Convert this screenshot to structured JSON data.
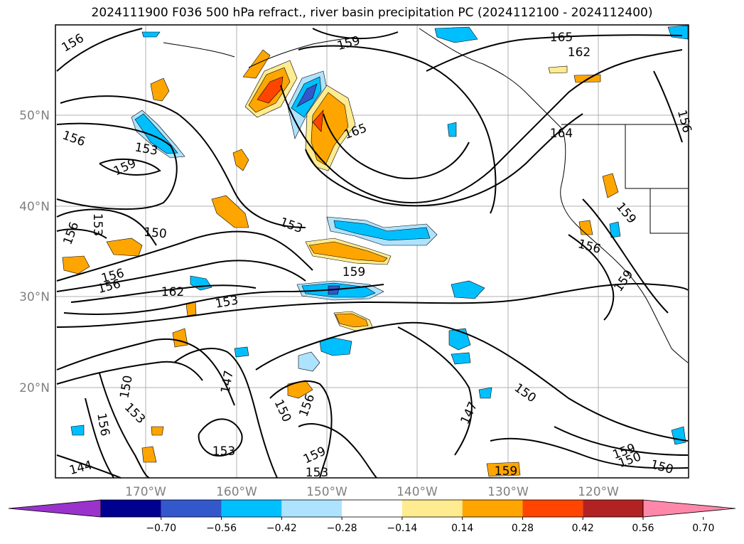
{
  "title": "2024111900 F036 500 hPa refract., river basin precipitation PC (2024112100 - 2024112400)",
  "lat_labels": [
    "50°N",
    "40°N",
    "30°N",
    "20°N"
  ],
  "lon_labels": [
    "170°W",
    "160°W",
    "150°W",
    "140°W",
    "130°W",
    "120°W"
  ],
  "contour_labels": [
    "156",
    "159",
    "165",
    "162",
    "156",
    "153",
    "159",
    "165",
    "156",
    "164",
    "156",
    "153",
    "150",
    "159",
    "156",
    "153",
    "159",
    "156",
    "156",
    "162",
    "153",
    "159",
    "150",
    "147",
    "150",
    "153",
    "156",
    "150",
    "156",
    "159",
    "147",
    "153",
    "144",
    "153",
    "159",
    "159",
    "150",
    "150",
    "156",
    "159"
  ],
  "colorbar": {
    "colors": [
      "#9933cc",
      "#000090",
      "#3358cc",
      "#00bfff",
      "#aee3ff",
      "#ffffff",
      "#ffeb90",
      "#ffa500",
      "#ff4500",
      "#b22222",
      "#ff88aa"
    ],
    "ticks": [
      "−0.70",
      "−0.56",
      "−0.42",
      "−0.28",
      "−0.14",
      "0.14",
      "0.28",
      "0.42",
      "0.56",
      "0.70"
    ]
  },
  "colors": {
    "contour": "#000000",
    "gridline": "#b0b0b0",
    "frame": "#000000",
    "tick_text": "#808080"
  }
}
